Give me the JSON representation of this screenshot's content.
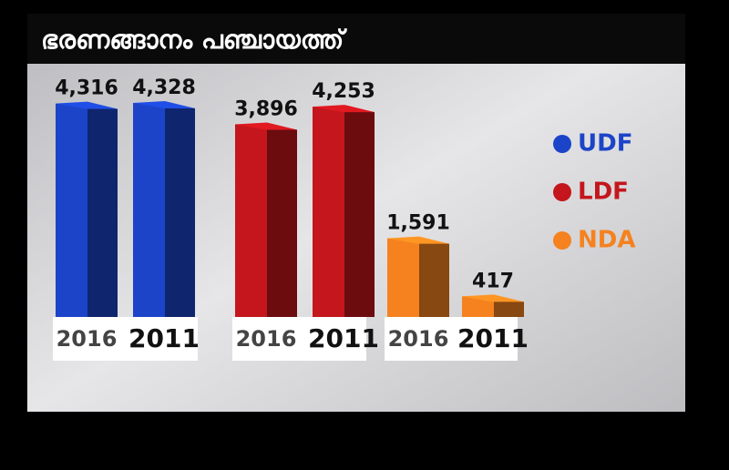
{
  "chart_data": {
    "type": "bar3d",
    "title": "ഭരണങ്ങാനം പഞ്ചായത്ത്",
    "categories": [
      "2016",
      "2011"
    ],
    "series": [
      {
        "name": "UDF",
        "color": "#1c44c8",
        "values": [
          4316,
          4328
        ],
        "value_labels": [
          "4,316",
          "4,328"
        ]
      },
      {
        "name": "LDF",
        "color": "#c4161c",
        "values": [
          3896,
          4253
        ],
        "value_labels": [
          "3,896",
          "4,253"
        ]
      },
      {
        "name": "NDA",
        "color": "#f5821f",
        "values": [
          1591,
          417
        ],
        "value_labels": [
          "1,591",
          "417"
        ]
      }
    ]
  }
}
